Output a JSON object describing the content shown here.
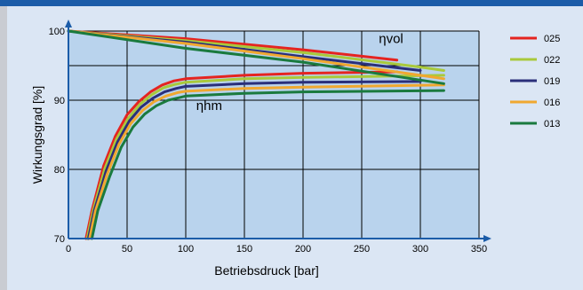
{
  "chart_data": {
    "type": "line",
    "xlabel": "Betriebsdruck [bar]",
    "ylabel": "Wirkungsgrad [%]",
    "xlim": [
      0,
      350
    ],
    "ylim": [
      70,
      100
    ],
    "xticks": [
      0,
      50,
      100,
      150,
      200,
      250,
      300,
      350
    ],
    "yticks": [
      70,
      80,
      90,
      100
    ],
    "grid": true,
    "legend_position": "right",
    "annotations": [
      {
        "text": "ηvol",
        "x": 275,
        "y": 98.3
      },
      {
        "text": "ηhm",
        "x": 120,
        "y": 88.6
      }
    ],
    "series": [
      {
        "name": "025",
        "color": "#e52420",
        "vol": [
          [
            0,
            100
          ],
          [
            100,
            98.9
          ],
          [
            200,
            97.3
          ],
          [
            280,
            95.8
          ]
        ],
        "hm": [
          [
            15,
            70
          ],
          [
            20,
            74
          ],
          [
            30,
            80.5
          ],
          [
            40,
            84.8
          ],
          [
            50,
            87.9
          ],
          [
            60,
            89.8
          ],
          [
            70,
            91.2
          ],
          [
            80,
            92.2
          ],
          [
            90,
            92.8
          ],
          [
            100,
            93.1
          ],
          [
            150,
            93.6
          ],
          [
            200,
            93.9
          ],
          [
            280,
            94.1
          ]
        ]
      },
      {
        "name": "022",
        "color": "#a9c93b",
        "vol": [
          [
            0,
            100
          ],
          [
            100,
            98.6
          ],
          [
            200,
            96.9
          ],
          [
            300,
            94.8
          ],
          [
            320,
            94.3
          ]
        ],
        "hm": [
          [
            16,
            70
          ],
          [
            21,
            74
          ],
          [
            31,
            80.1
          ],
          [
            41,
            84.4
          ],
          [
            51,
            87.4
          ],
          [
            61,
            89.4
          ],
          [
            71,
            90.8
          ],
          [
            81,
            91.8
          ],
          [
            91,
            92.3
          ],
          [
            100,
            92.6
          ],
          [
            150,
            93.1
          ],
          [
            200,
            93.3
          ],
          [
            320,
            93.6
          ]
        ]
      },
      {
        "name": "019",
        "color": "#2a2f7a",
        "vol": [
          [
            0,
            100
          ],
          [
            100,
            98.4
          ],
          [
            200,
            96.3
          ],
          [
            300,
            94.3
          ]
        ],
        "hm": [
          [
            17,
            70
          ],
          [
            22,
            74
          ],
          [
            32,
            79.7
          ],
          [
            42,
            84
          ],
          [
            52,
            87
          ],
          [
            62,
            89
          ],
          [
            72,
            90.3
          ],
          [
            82,
            91.2
          ],
          [
            92,
            91.7
          ],
          [
            100,
            92
          ],
          [
            150,
            92.4
          ],
          [
            200,
            92.6
          ],
          [
            300,
            92.7
          ]
        ]
      },
      {
        "name": "016",
        "color": "#f0a830",
        "vol": [
          [
            0,
            100
          ],
          [
            100,
            98.2
          ],
          [
            200,
            96
          ],
          [
            300,
            93.6
          ],
          [
            320,
            93.1
          ]
        ],
        "hm": [
          [
            18,
            70
          ],
          [
            23,
            74
          ],
          [
            33,
            79.3
          ],
          [
            43,
            83.6
          ],
          [
            53,
            86.6
          ],
          [
            63,
            88.5
          ],
          [
            73,
            89.8
          ],
          [
            83,
            90.6
          ],
          [
            93,
            91.1
          ],
          [
            100,
            91.3
          ],
          [
            150,
            91.7
          ],
          [
            200,
            91.9
          ],
          [
            320,
            92.2
          ]
        ]
      },
      {
        "name": "013",
        "color": "#1a7a3e",
        "vol": [
          [
            0,
            100
          ],
          [
            100,
            97.5
          ],
          [
            200,
            95.5
          ],
          [
            320,
            92.4
          ]
        ],
        "hm": [
          [
            20,
            70
          ],
          [
            25,
            74
          ],
          [
            35,
            78.9
          ],
          [
            45,
            83.2
          ],
          [
            55,
            86.1
          ],
          [
            65,
            88
          ],
          [
            75,
            89.2
          ],
          [
            85,
            90
          ],
          [
            95,
            90.4
          ],
          [
            100,
            90.6
          ],
          [
            150,
            91
          ],
          [
            200,
            91.2
          ],
          [
            320,
            91.4
          ]
        ]
      }
    ]
  }
}
